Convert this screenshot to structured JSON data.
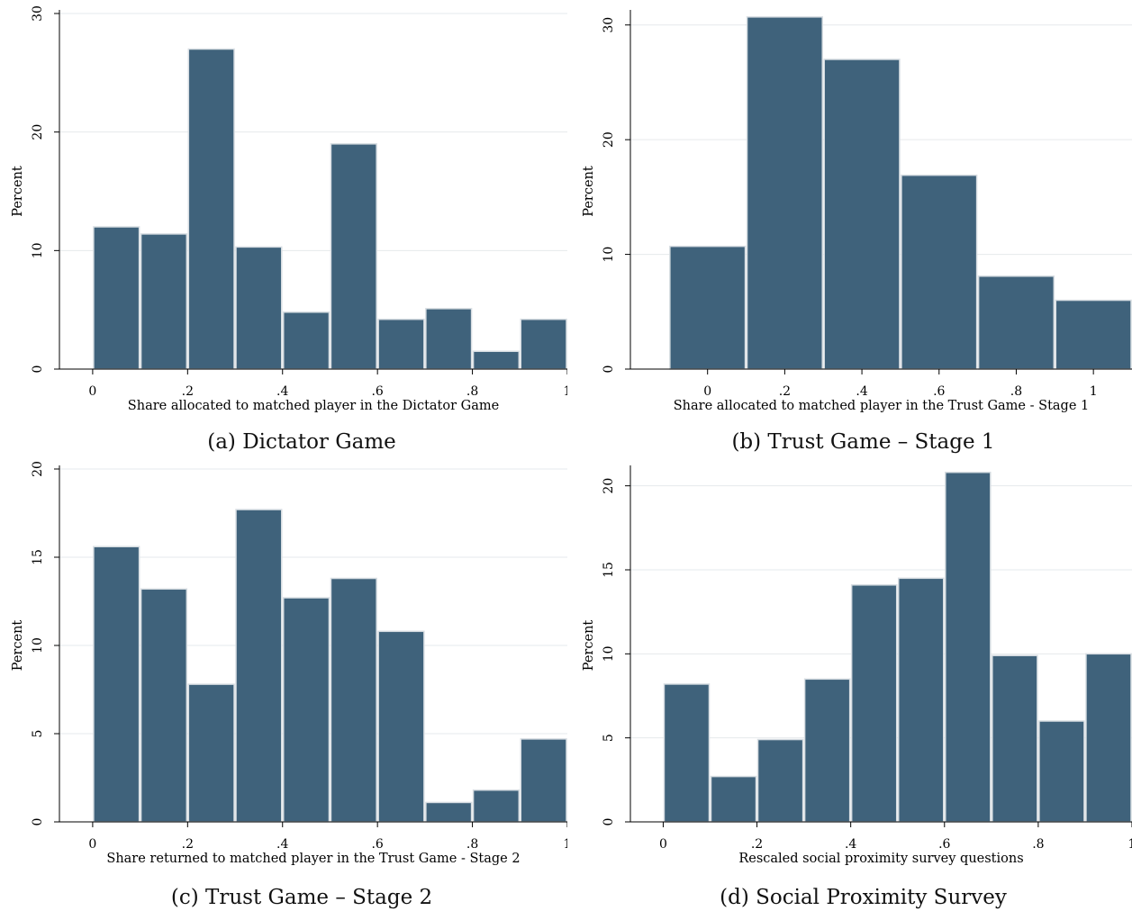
{
  "colors": {
    "bar": "#3f627b",
    "bar_edge": "#ffffff",
    "grid": "#e6e9ec",
    "axis": "#000000"
  },
  "chart_data": [
    {
      "type": "bar",
      "caption": "(a) Dictator Game",
      "xlabel": "Share allocated to matched player in the Dictator Game",
      "ylabel": "Percent",
      "xlim": [
        -0.07,
        1.0
      ],
      "ylim": [
        0,
        30
      ],
      "x_ticks": [
        {
          "v": 0,
          "label": "0"
        },
        {
          "v": 0.2,
          "label": ".2"
        },
        {
          "v": 0.4,
          "label": ".4"
        },
        {
          "v": 0.6,
          "label": ".6"
        },
        {
          "v": 0.8,
          "label": ".8"
        },
        {
          "v": 1,
          "label": "1"
        }
      ],
      "y_ticks": [
        {
          "v": 0,
          "label": "0"
        },
        {
          "v": 10,
          "label": "10"
        },
        {
          "v": 20,
          "label": "20"
        },
        {
          "v": 30,
          "label": "30"
        }
      ],
      "grid": true,
      "bins": [
        {
          "x0": 0.0,
          "x1": 0.1,
          "value": 12.0
        },
        {
          "x0": 0.1,
          "x1": 0.2,
          "value": 11.4
        },
        {
          "x0": 0.2,
          "x1": 0.3,
          "value": 27.0
        },
        {
          "x0": 0.3,
          "x1": 0.4,
          "value": 10.3
        },
        {
          "x0": 0.4,
          "x1": 0.5,
          "value": 4.8
        },
        {
          "x0": 0.5,
          "x1": 0.6,
          "value": 19.0
        },
        {
          "x0": 0.6,
          "x1": 0.7,
          "value": 4.2
        },
        {
          "x0": 0.7,
          "x1": 0.8,
          "value": 5.1
        },
        {
          "x0": 0.8,
          "x1": 0.9,
          "value": 1.5
        },
        {
          "x0": 0.9,
          "x1": 1.0,
          "value": 4.2
        }
      ]
    },
    {
      "type": "bar",
      "caption": "(b) Trust Game – Stage 1",
      "xlabel": "Share allocated to matched player in the Trust Game - Stage 1",
      "ylabel": "Percent",
      "xlim": [
        -0.2,
        1.1
      ],
      "ylim": [
        0,
        31
      ],
      "x_ticks": [
        {
          "v": 0,
          "label": "0"
        },
        {
          "v": 0.2,
          "label": ".2"
        },
        {
          "v": 0.4,
          "label": ".4"
        },
        {
          "v": 0.6,
          "label": ".6"
        },
        {
          "v": 0.8,
          "label": ".8"
        },
        {
          "v": 1,
          "label": "1"
        }
      ],
      "y_ticks": [
        {
          "v": 0,
          "label": "0"
        },
        {
          "v": 10,
          "label": "10"
        },
        {
          "v": 20,
          "label": "20"
        },
        {
          "v": 30,
          "label": "30"
        }
      ],
      "grid": true,
      "bins": [
        {
          "x0": -0.1,
          "x1": 0.1,
          "value": 10.7
        },
        {
          "x0": 0.1,
          "x1": 0.3,
          "value": 30.7
        },
        {
          "x0": 0.3,
          "x1": 0.5,
          "value": 27.0
        },
        {
          "x0": 0.5,
          "x1": 0.7,
          "value": 16.9
        },
        {
          "x0": 0.7,
          "x1": 0.9,
          "value": 8.1
        },
        {
          "x0": 0.9,
          "x1": 1.1,
          "value": 6.0
        }
      ]
    },
    {
      "type": "bar",
      "caption": "(c) Trust Game – Stage 2",
      "xlabel": "Share returned to matched player in the Trust Game - Stage 2",
      "ylabel": "Percent",
      "xlim": [
        -0.07,
        1.0
      ],
      "ylim": [
        0,
        20
      ],
      "x_ticks": [
        {
          "v": 0,
          "label": "0"
        },
        {
          "v": 0.2,
          "label": ".2"
        },
        {
          "v": 0.4,
          "label": ".4"
        },
        {
          "v": 0.6,
          "label": ".6"
        },
        {
          "v": 0.8,
          "label": ".8"
        },
        {
          "v": 1,
          "label": "1"
        }
      ],
      "y_ticks": [
        {
          "v": 0,
          "label": "0"
        },
        {
          "v": 5,
          "label": "5"
        },
        {
          "v": 10,
          "label": "10"
        },
        {
          "v": 15,
          "label": "15"
        },
        {
          "v": 20,
          "label": "20"
        }
      ],
      "grid": true,
      "bins": [
        {
          "x0": 0.0,
          "x1": 0.1,
          "value": 15.6
        },
        {
          "x0": 0.1,
          "x1": 0.2,
          "value": 13.2
        },
        {
          "x0": 0.2,
          "x1": 0.3,
          "value": 7.8
        },
        {
          "x0": 0.3,
          "x1": 0.4,
          "value": 17.7
        },
        {
          "x0": 0.4,
          "x1": 0.5,
          "value": 12.7
        },
        {
          "x0": 0.5,
          "x1": 0.6,
          "value": 13.8
        },
        {
          "x0": 0.6,
          "x1": 0.7,
          "value": 10.8
        },
        {
          "x0": 0.7,
          "x1": 0.8,
          "value": 1.1
        },
        {
          "x0": 0.8,
          "x1": 0.9,
          "value": 1.8
        },
        {
          "x0": 0.9,
          "x1": 1.0,
          "value": 4.7
        }
      ]
    },
    {
      "type": "bar",
      "caption": "(d) Social Proximity Survey",
      "xlabel": "Rescaled social proximity survey questions",
      "ylabel": "Percent",
      "xlim": [
        -0.07,
        1.0
      ],
      "ylim": [
        0,
        21
      ],
      "x_ticks": [
        {
          "v": 0,
          "label": "0"
        },
        {
          "v": 0.2,
          "label": ".2"
        },
        {
          "v": 0.4,
          "label": ".4"
        },
        {
          "v": 0.6,
          "label": ".6"
        },
        {
          "v": 0.8,
          "label": ".8"
        },
        {
          "v": 1,
          "label": "1"
        }
      ],
      "y_ticks": [
        {
          "v": 0,
          "label": "0"
        },
        {
          "v": 5,
          "label": "5"
        },
        {
          "v": 10,
          "label": "10"
        },
        {
          "v": 15,
          "label": "15"
        },
        {
          "v": 20,
          "label": "20"
        }
      ],
      "grid": true,
      "bins": [
        {
          "x0": 0.0,
          "x1": 0.1,
          "value": 8.2
        },
        {
          "x0": 0.1,
          "x1": 0.2,
          "value": 2.7
        },
        {
          "x0": 0.2,
          "x1": 0.3,
          "value": 4.9
        },
        {
          "x0": 0.3,
          "x1": 0.4,
          "value": 8.5
        },
        {
          "x0": 0.4,
          "x1": 0.5,
          "value": 14.1
        },
        {
          "x0": 0.5,
          "x1": 0.6,
          "value": 14.5
        },
        {
          "x0": 0.6,
          "x1": 0.7,
          "value": 20.8
        },
        {
          "x0": 0.7,
          "x1": 0.8,
          "value": 9.9
        },
        {
          "x0": 0.8,
          "x1": 0.9,
          "value": 6.0
        },
        {
          "x0": 0.9,
          "x1": 1.0,
          "value": 10.0
        }
      ]
    }
  ]
}
